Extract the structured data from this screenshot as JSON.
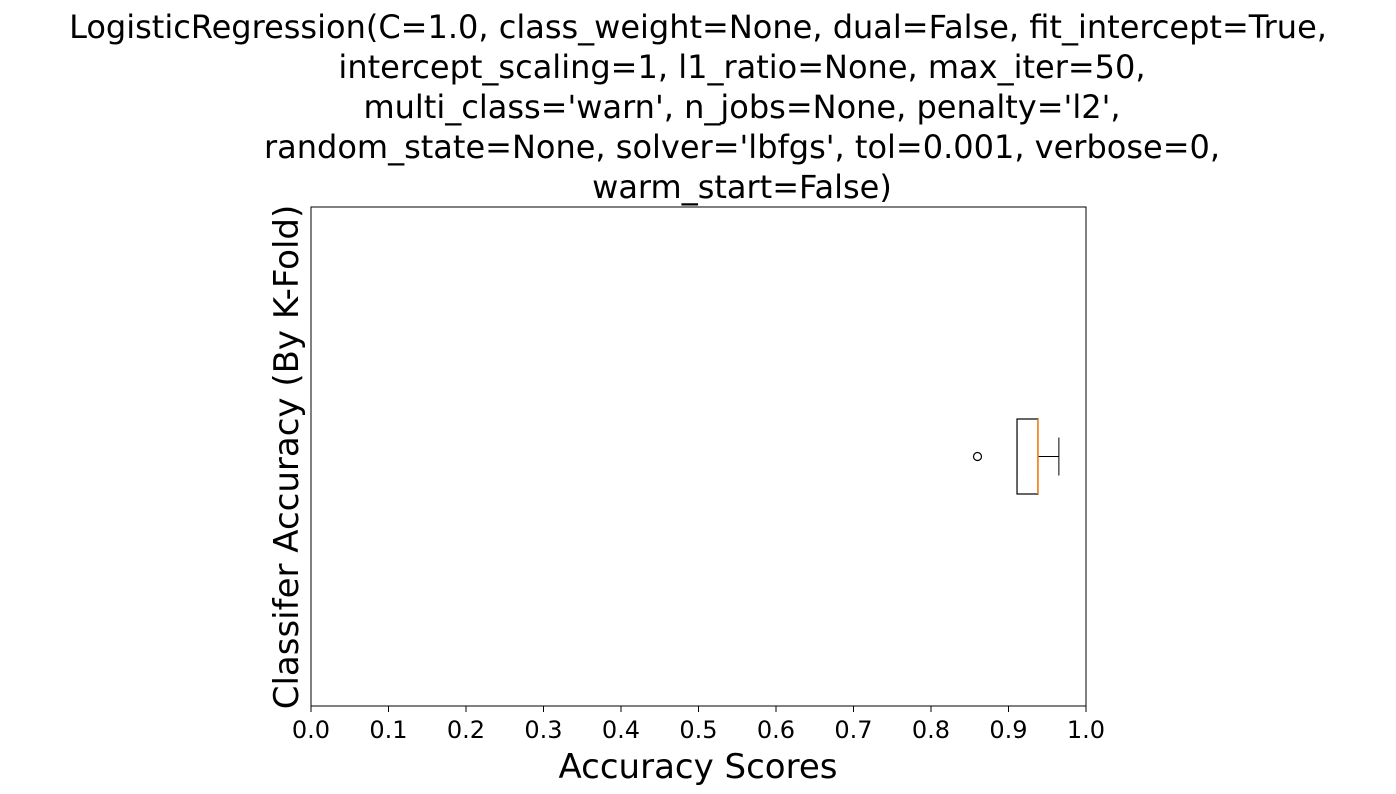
{
  "chart_data": {
    "type": "boxplot",
    "orientation": "horizontal",
    "title_lines": [
      "LogisticRegression(C=1.0, class_weight=None, dual=False, fit_intercept=True,",
      "intercept_scaling=1, l1_ratio=None, max_iter=50,",
      "multi_class='warn', n_jobs=None, penalty='l2',",
      "random_state=None, solver='lbfgs', tol=0.001, verbose=0,",
      "warm_start=False)"
    ],
    "xlabel": "Accuracy Scores",
    "ylabel": "Classifer Accuracy (By K-Fold)",
    "xlim": [
      0.0,
      1.0
    ],
    "xticks": [
      "0.0",
      "0.1",
      "0.2",
      "0.3",
      "0.4",
      "0.5",
      "0.6",
      "0.7",
      "0.8",
      "0.9",
      "1.0"
    ],
    "grid": false,
    "box": {
      "whisker_low": 0.911,
      "q1": 0.911,
      "median": 0.938,
      "q3": 0.938,
      "whisker_high": 0.965,
      "outliers": [
        0.86
      ]
    },
    "colors": {
      "box": "#000000",
      "median": "#ff7f0e",
      "outlier": "#000000"
    }
  }
}
